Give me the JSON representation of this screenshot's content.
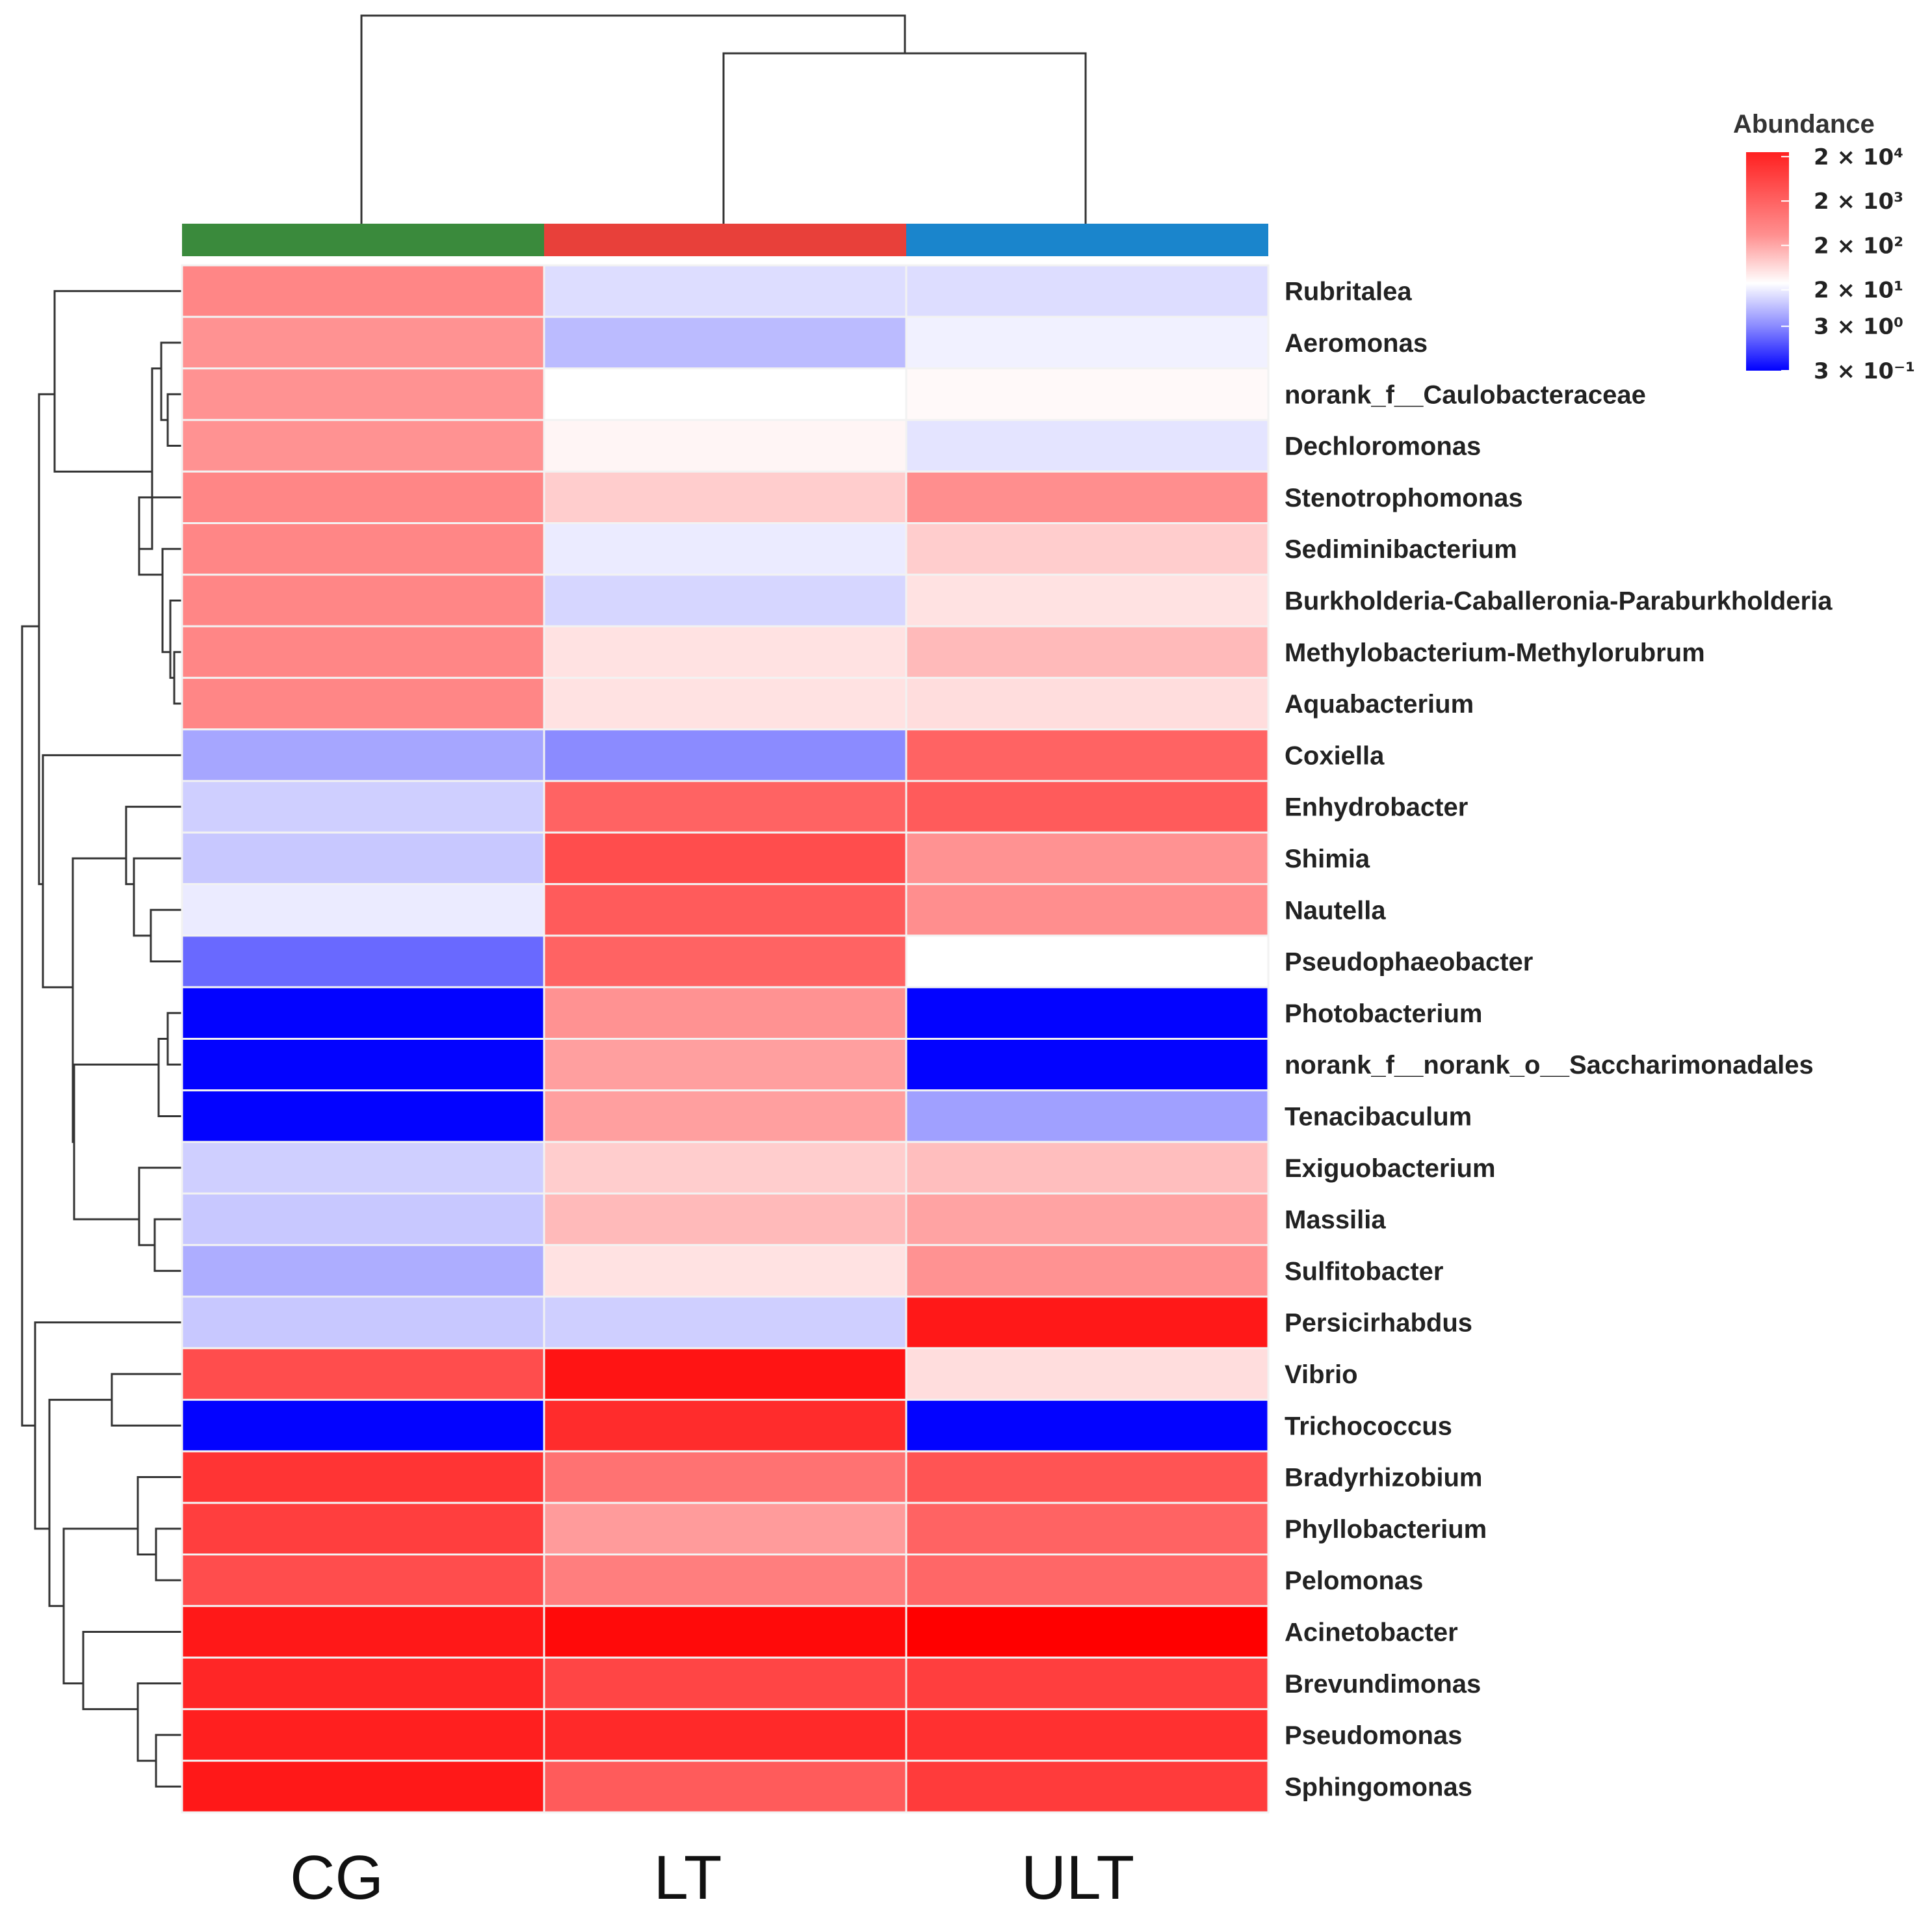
{
  "chart_data": {
    "type": "heatmap",
    "title": "",
    "columns": [
      "CG",
      "LT",
      "ULT"
    ],
    "column_group_colors": [
      "#3a8a3c",
      "#e8403a",
      "#1a85cc"
    ],
    "rows": [
      "Rubritalea",
      "Aeromonas",
      "norank_f__Caulobacteraceae",
      "Dechloromonas",
      "Stenotrophomonas",
      "Sediminibacterium",
      "Burkholderia-Caballeronia-Paraburkholderia",
      "Methylobacterium-Methylorubrum",
      "Aquabacterium",
      "Coxiella",
      "Enhydrobacter",
      "Shimia",
      "Nautella",
      "Pseudophaeobacter",
      "Photobacterium",
      "norank_f__norank_o__Saccharimonadales",
      "Tenacibaculum",
      "Exiguobacterium",
      "Massilia",
      "Sulfitobacter",
      "Persicirhabdus",
      "Vibrio",
      "Trichococcus",
      "Bradyrhizobium",
      "Phyllobacterium",
      "Pelomonas",
      "Acinetobacter",
      "Brevundimonas",
      "Pseudomonas",
      "Sphingomonas"
    ],
    "value_scale": "log10 abundance",
    "values_log10": [
      [
        2.55,
        1.1,
        1.1
      ],
      [
        2.4,
        0.85,
        1.25
      ],
      [
        2.4,
        1.35,
        1.38
      ],
      [
        2.4,
        1.4,
        1.15
      ],
      [
        2.55,
        1.75,
        2.45
      ],
      [
        2.55,
        1.2,
        1.75
      ],
      [
        2.55,
        1.05,
        1.55
      ],
      [
        2.55,
        1.55,
        1.95
      ],
      [
        2.55,
        1.55,
        1.6
      ],
      [
        0.7,
        0.5,
        3.0
      ],
      [
        1.0,
        3.0,
        3.1
      ],
      [
        0.95,
        3.3,
        2.4
      ],
      [
        1.2,
        3.1,
        2.45
      ],
      [
        0.25,
        3.0,
        1.35
      ],
      [
        -0.5,
        2.4,
        -0.5
      ],
      [
        -0.5,
        2.25,
        -0.5
      ],
      [
        -0.5,
        2.25,
        0.65
      ],
      [
        1.0,
        1.75,
        1.9
      ],
      [
        0.95,
        1.95,
        2.2
      ],
      [
        0.75,
        1.55,
        2.4
      ],
      [
        0.95,
        1.0,
        4.05
      ],
      [
        3.3,
        4.1,
        1.6
      ],
      [
        -0.5,
        3.75,
        -0.5
      ],
      [
        3.65,
        2.8,
        3.2
      ],
      [
        3.5,
        2.3,
        3.0
      ],
      [
        3.3,
        2.65,
        2.95
      ],
      [
        4.05,
        4.25,
        4.4
      ],
      [
        3.85,
        3.4,
        3.5
      ],
      [
        3.95,
        3.8,
        3.7
      ],
      [
        4.05,
        3.1,
        3.55
      ]
    ],
    "legend": {
      "title": "Abundance",
      "ticks": [
        "2 × 10⁴",
        "2 × 10³",
        "2 × 10²",
        "2 × 10¹",
        "3 × 10⁰",
        "3 × 10⁻¹"
      ],
      "tick_log10": [
        4.3,
        3.3,
        2.3,
        1.3,
        0.48,
        -0.52
      ],
      "range_log10": [
        -0.52,
        4.4
      ],
      "placement": "top-right"
    },
    "low_color": "#0000ff",
    "mid_color": "#ffffff",
    "high_color": "#ff0000",
    "mid_log10": 1.35
  }
}
